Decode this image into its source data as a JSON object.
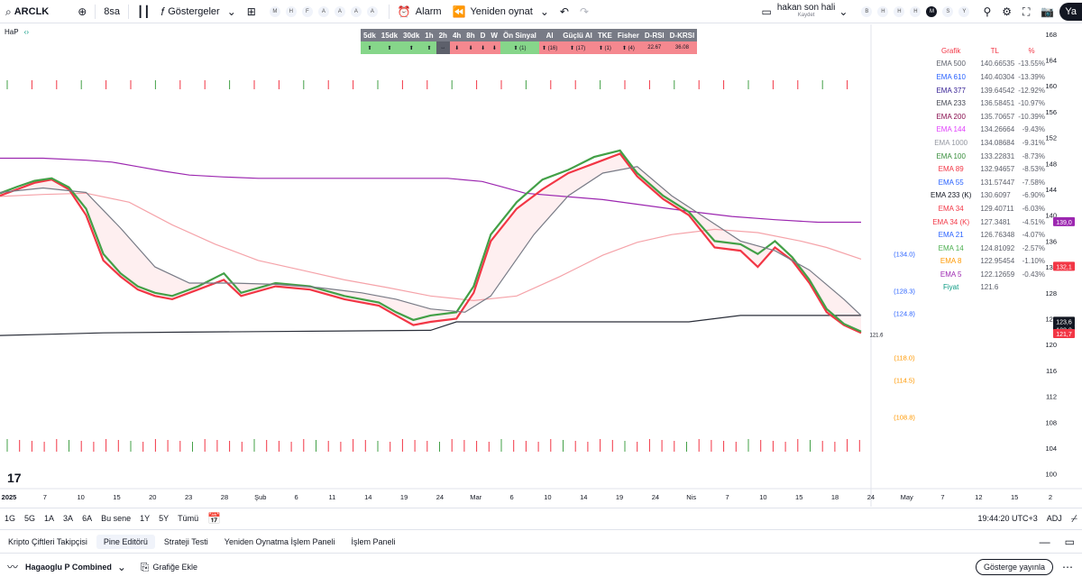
{
  "topbar": {
    "symbol": "ARCLK",
    "interval": "8sa",
    "indicators_label": "Göstergeler",
    "timeframe_chips": [
      "M",
      "H",
      "F",
      "A",
      "A",
      "A",
      "A"
    ],
    "alarm_label": "Alarm",
    "replay_label": "Yeniden oynat",
    "layout_name": "hakan son hali",
    "layout_saved": "Kaydet",
    "day_chips": [
      "B",
      "H",
      "H",
      "H",
      "M",
      "S",
      "Y"
    ],
    "day_active": 4,
    "account_short": "Ya"
  },
  "indicator": {
    "name": "HaP"
  },
  "signal_table": {
    "headers": [
      "5dk",
      "15dk",
      "30dk",
      "1h",
      "2h",
      "4h",
      "8h",
      "D",
      "W",
      "Ön Sinyal",
      "Al",
      "Güçlü Al",
      "TKE",
      "Fisher",
      "D-RSI",
      "D-KRSI"
    ],
    "values": [
      "⬆",
      "⬆",
      "⬆",
      "⬆",
      "↔",
      "⬇",
      "⬇",
      "⬇",
      "⬇",
      "⬆ (1)",
      "⬆ (16)",
      "⬆ (17)",
      "⬆ (1)",
      "⬆ (4)",
      "22.67",
      "36.08"
    ],
    "colors": [
      "g",
      "g",
      "g",
      "g",
      "gr",
      "r",
      "r",
      "r",
      "r",
      "g",
      "r",
      "r",
      "r",
      "r",
      "r",
      "r"
    ]
  },
  "ema_table": {
    "headers": [
      "Grafik",
      "TL",
      "%"
    ],
    "rows": [
      {
        "name": "EMA 500",
        "value": "140.66535",
        "pct": "-13.55%",
        "color": "#5d606b"
      },
      {
        "name": "EMA 610",
        "value": "140.40304",
        "pct": "-13.39%",
        "color": "#2962ff"
      },
      {
        "name": "EMA 377",
        "value": "139.64542",
        "pct": "-12.92%",
        "color": "#311b92"
      },
      {
        "name": "EMA 233",
        "value": "136.58451",
        "pct": "-10.97%",
        "color": "#434651"
      },
      {
        "name": "EMA 200",
        "value": "135.70657",
        "pct": "-10.39%",
        "color": "#880e4f"
      },
      {
        "name": "EMA 144",
        "value": "134.26664",
        "pct": "-9.43%",
        "color": "#e040fb"
      },
      {
        "name": "EMA 1000",
        "value": "134.08684",
        "pct": "-9.31%",
        "color": "#9598a1"
      },
      {
        "name": "EMA 100",
        "value": "133.22831",
        "pct": "-8.73%",
        "color": "#388e3c"
      },
      {
        "name": "EMA 89",
        "value": "132.94657",
        "pct": "-8.53%",
        "color": "#f23645"
      },
      {
        "name": "EMA 55",
        "value": "131.57447",
        "pct": "-7.58%",
        "color": "#2962ff"
      },
      {
        "name": "EMA 233 (K)",
        "value": "130.6097",
        "pct": "-6.90%",
        "color": "#131722"
      },
      {
        "name": "EMA 34",
        "value": "129.40711",
        "pct": "-6.03%",
        "color": "#f23645"
      },
      {
        "name": "EMA 34 (K)",
        "value": "127.3481",
        "pct": "-4.51%",
        "color": "#f23645"
      },
      {
        "name": "EMA 21",
        "value": "126.76348",
        "pct": "-4.07%",
        "color": "#2962ff"
      },
      {
        "name": "EMA 14",
        "value": "124.81092",
        "pct": "-2.57%",
        "color": "#4caf50"
      },
      {
        "name": "EMA 8",
        "value": "122.95454",
        "pct": "-1.10%",
        "color": "#ff9800"
      },
      {
        "name": "EMA 5",
        "value": "122.12659",
        "pct": "-0.43%",
        "color": "#9c27b0"
      },
      {
        "name": "Fiyat",
        "value": "121.6",
        "pct": "",
        "color": "#089981"
      }
    ]
  },
  "chart_data": {
    "type": "line",
    "y_ticks": [
      100,
      104,
      108,
      112,
      116,
      120,
      124,
      128,
      132,
      136,
      140,
      144,
      148,
      152,
      156,
      160,
      164,
      168
    ],
    "ylim": [
      98,
      169.5
    ],
    "x_ticks": [
      "2025",
      "7",
      "10",
      "15",
      "20",
      "23",
      "28",
      "Şub",
      "6",
      "11",
      "14",
      "19",
      "24",
      "Mar",
      "6",
      "10",
      "14",
      "19",
      "24",
      "Nis",
      "7",
      "10",
      "15",
      "18",
      "24",
      "May",
      "7",
      "12",
      "15",
      "2"
    ],
    "price_labels": [
      {
        "text": "139,0",
        "value": 139.0,
        "bg": "#9c27b0"
      },
      {
        "text": "132,1",
        "value": 132.1,
        "bg": "#f23645"
      },
      {
        "text": "123,6",
        "value": 123.6,
        "bg": "#131722"
      },
      {
        "text": "122,3",
        "value": 122.3,
        "bg": "#131722"
      },
      {
        "text": "121,7",
        "value": 121.7,
        "bg": "#f23645"
      }
    ],
    "levels": [
      {
        "text": "(134.0)",
        "value": 134.0,
        "color": "#2962ff"
      },
      {
        "text": "(128.3)",
        "value": 128.3,
        "color": "#2962ff"
      },
      {
        "text": "(124.8)",
        "value": 124.8,
        "color": "#2962ff"
      },
      {
        "text": "(118.0)",
        "value": 118.0,
        "color": "#ff9800"
      },
      {
        "text": "(114.5)",
        "value": 114.5,
        "color": "#ff9800"
      },
      {
        "text": "(108.8)",
        "value": 108.8,
        "color": "#ff9800"
      }
    ],
    "last_price_text": "121.6",
    "series": [
      {
        "color": "#9c27b0",
        "x": [
          0,
          0.05,
          0.1,
          0.13,
          0.16,
          0.19,
          0.22,
          0.26,
          0.3,
          0.36,
          0.42,
          0.48,
          0.52,
          0.56,
          0.58,
          0.61,
          0.7,
          0.75,
          0.8,
          0.85,
          0.9,
          0.95,
          1
        ],
        "y": [
          148.8,
          148.8,
          148.5,
          148.2,
          147.5,
          146.8,
          146.2,
          145.9,
          145.7,
          145.7,
          145.7,
          145.7,
          145.7,
          145.2,
          144.5,
          143.4,
          142.4,
          141.5,
          140.6,
          139.8,
          139.3,
          138.9,
          138.9
        ]
      },
      {
        "color": "#f5a3a9",
        "x": [
          0,
          0.05,
          0.1,
          0.15,
          0.2,
          0.25,
          0.3,
          0.35,
          0.4,
          0.45,
          0.5,
          0.55,
          0.6,
          0.65,
          0.7,
          0.74,
          0.78,
          0.83,
          0.88,
          0.93,
          0.96,
          1
        ],
        "y": [
          142.9,
          143.2,
          143.4,
          142.0,
          138.5,
          135.5,
          133.0,
          131.5,
          130.0,
          128.8,
          127.5,
          126.8,
          127.5,
          130.5,
          133.8,
          135.8,
          137.0,
          137.8,
          137.3,
          136.0,
          135.0,
          133.2
        ]
      },
      {
        "color": "#2a2e39",
        "x": [
          0,
          0.06,
          0.12,
          0.2,
          0.3,
          0.4,
          0.5,
          0.53,
          0.7,
          0.8,
          0.86,
          0.9,
          0.95,
          1
        ],
        "y": [
          121.4,
          121.6,
          121.8,
          121.9,
          122.0,
          122.1,
          122.2,
          123.5,
          123.5,
          123.5,
          124.5,
          124.5,
          124.5,
          124.5
        ]
      },
      {
        "color": "#f23645",
        "x": [
          0,
          0.02,
          0.04,
          0.06,
          0.08,
          0.1,
          0.12,
          0.14,
          0.16,
          0.18,
          0.2,
          0.23,
          0.26,
          0.28,
          0.32,
          0.36,
          0.4,
          0.44,
          0.46,
          0.48,
          0.5,
          0.53,
          0.55,
          0.57,
          0.6,
          0.63,
          0.66,
          0.69,
          0.72,
          0.74,
          0.77,
          0.8,
          0.83,
          0.86,
          0.88,
          0.9,
          0.92,
          0.94,
          0.96,
          0.98,
          1
        ],
        "y": [
          143.0,
          144.0,
          145.0,
          145.5,
          144.0,
          140.0,
          133.0,
          130.5,
          128.5,
          127.5,
          127.0,
          128.5,
          130.0,
          127.5,
          129.0,
          128.5,
          127.0,
          126.0,
          124.5,
          123.0,
          123.5,
          124.0,
          128.0,
          136.0,
          141.0,
          144.0,
          146.5,
          148.0,
          149.5,
          146.0,
          142.5,
          140.0,
          135.0,
          134.5,
          132.0,
          135.0,
          133.0,
          129.5,
          125.0,
          123.0,
          121.8
        ]
      },
      {
        "color": "#43a047",
        "x": [
          0,
          0.02,
          0.04,
          0.06,
          0.08,
          0.1,
          0.12,
          0.14,
          0.16,
          0.18,
          0.2,
          0.23,
          0.26,
          0.28,
          0.32,
          0.36,
          0.4,
          0.44,
          0.46,
          0.48,
          0.5,
          0.53,
          0.55,
          0.57,
          0.6,
          0.63,
          0.66,
          0.69,
          0.72,
          0.74,
          0.77,
          0.8,
          0.83,
          0.86,
          0.88,
          0.9,
          0.92,
          0.94,
          0.96,
          0.98,
          1
        ],
        "y": [
          143.4,
          144.4,
          145.3,
          145.7,
          144.3,
          141.0,
          134.0,
          131.0,
          129.0,
          128.0,
          127.5,
          129.0,
          131.0,
          128.0,
          129.5,
          129.0,
          127.5,
          126.5,
          125.0,
          123.8,
          124.5,
          125.0,
          129.0,
          137.0,
          142.0,
          145.5,
          147.0,
          149.0,
          150.0,
          146.5,
          143.0,
          140.5,
          136.0,
          135.5,
          134.0,
          136.0,
          133.5,
          130.0,
          125.5,
          123.2,
          122.0
        ]
      },
      {
        "color": "#787b86",
        "x": [
          0,
          0.05,
          0.1,
          0.14,
          0.18,
          0.22,
          0.27,
          0.32,
          0.37,
          0.42,
          0.46,
          0.5,
          0.54,
          0.57,
          0.62,
          0.66,
          0.7,
          0.74,
          0.78,
          0.82,
          0.86,
          0.9,
          0.94,
          0.98,
          1
        ],
        "y": [
          143.5,
          144.2,
          143.5,
          138.0,
          132.0,
          129.5,
          129.5,
          129.3,
          128.8,
          128.0,
          127.0,
          125.5,
          125.0,
          127.5,
          137.0,
          143.0,
          146.5,
          147.5,
          143.0,
          139.5,
          136.0,
          134.5,
          131.5,
          127.0,
          124.5
        ]
      }
    ]
  },
  "bottom_bar": {
    "ranges": [
      "1G",
      "5G",
      "1A",
      "3A",
      "6A",
      "Bu sene",
      "1Y",
      "5Y",
      "Tümü"
    ],
    "clock": "19:44:20 UTC+3",
    "adj": "ADJ"
  },
  "panel_tabs": {
    "tabs": [
      "Kripto Çiftleri Takipçisi",
      "Pine Editörü",
      "Strateji Testi",
      "Yeniden Oynatma İşlem Paneli",
      "İşlem Paneli"
    ],
    "active": 1
  },
  "pine": {
    "script_name": "Hagaoglu P Combined",
    "add_to_chart": "Grafiğe Ekle",
    "publish": "Gösterge yayınla"
  }
}
